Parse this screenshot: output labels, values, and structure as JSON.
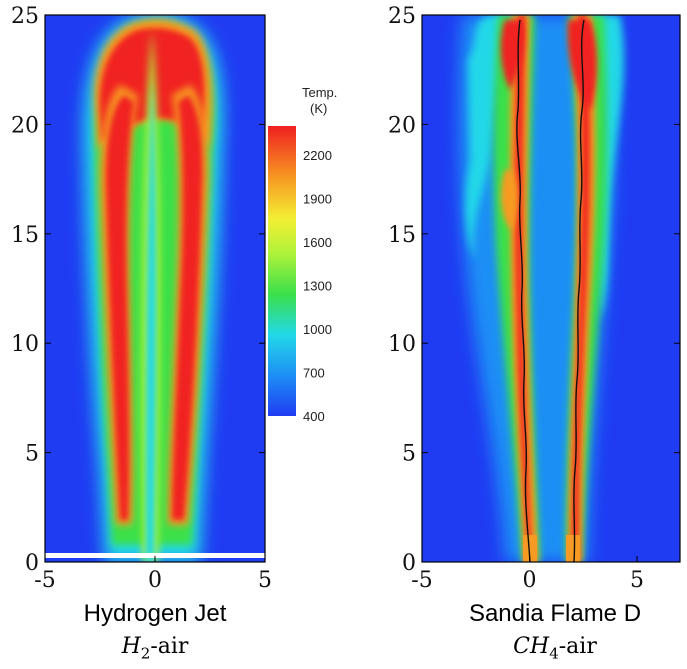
{
  "colors": {
    "background_field": "#1f3cf2",
    "colormap": [
      "#1f3cf2",
      "#1e8ff5",
      "#22d8e8",
      "#3be04a",
      "#aef23a",
      "#f3ef33",
      "#f79a23",
      "#f02020"
    ]
  },
  "chart_data": [
    {
      "type": "heatmap",
      "id": "left",
      "y_ticks": [
        "0",
        "5",
        "10",
        "15",
        "20",
        "25"
      ],
      "x_ticks": [
        "-5",
        "0",
        "5"
      ],
      "xlim": [
        -5,
        5
      ],
      "ylim": [
        0,
        25
      ],
      "caption": "Hydrogen Jet",
      "subcaption_math": "H",
      "subcaption_sub": "2",
      "subcaption_suffix": "-air"
    },
    {
      "type": "heatmap",
      "id": "right",
      "y_ticks": [
        "0",
        "5",
        "10",
        "15",
        "20",
        "25"
      ],
      "x_ticks": [
        "-5",
        "0",
        "5"
      ],
      "xlim": [
        -5,
        7
      ],
      "ylim": [
        0,
        25
      ],
      "caption": "Sandia Flame D",
      "subcaption_math": "CH",
      "subcaption_sub": "4",
      "subcaption_suffix": "-air"
    }
  ],
  "colorbar": {
    "title_line1": "Temp.",
    "title_line2": "(K)",
    "ticks": [
      "2200",
      "1900",
      "1600",
      "1300",
      "1000",
      "700",
      "400"
    ],
    "tick_values": [
      2200,
      1900,
      1600,
      1300,
      1000,
      700,
      400
    ],
    "range": [
      400,
      2400
    ]
  }
}
